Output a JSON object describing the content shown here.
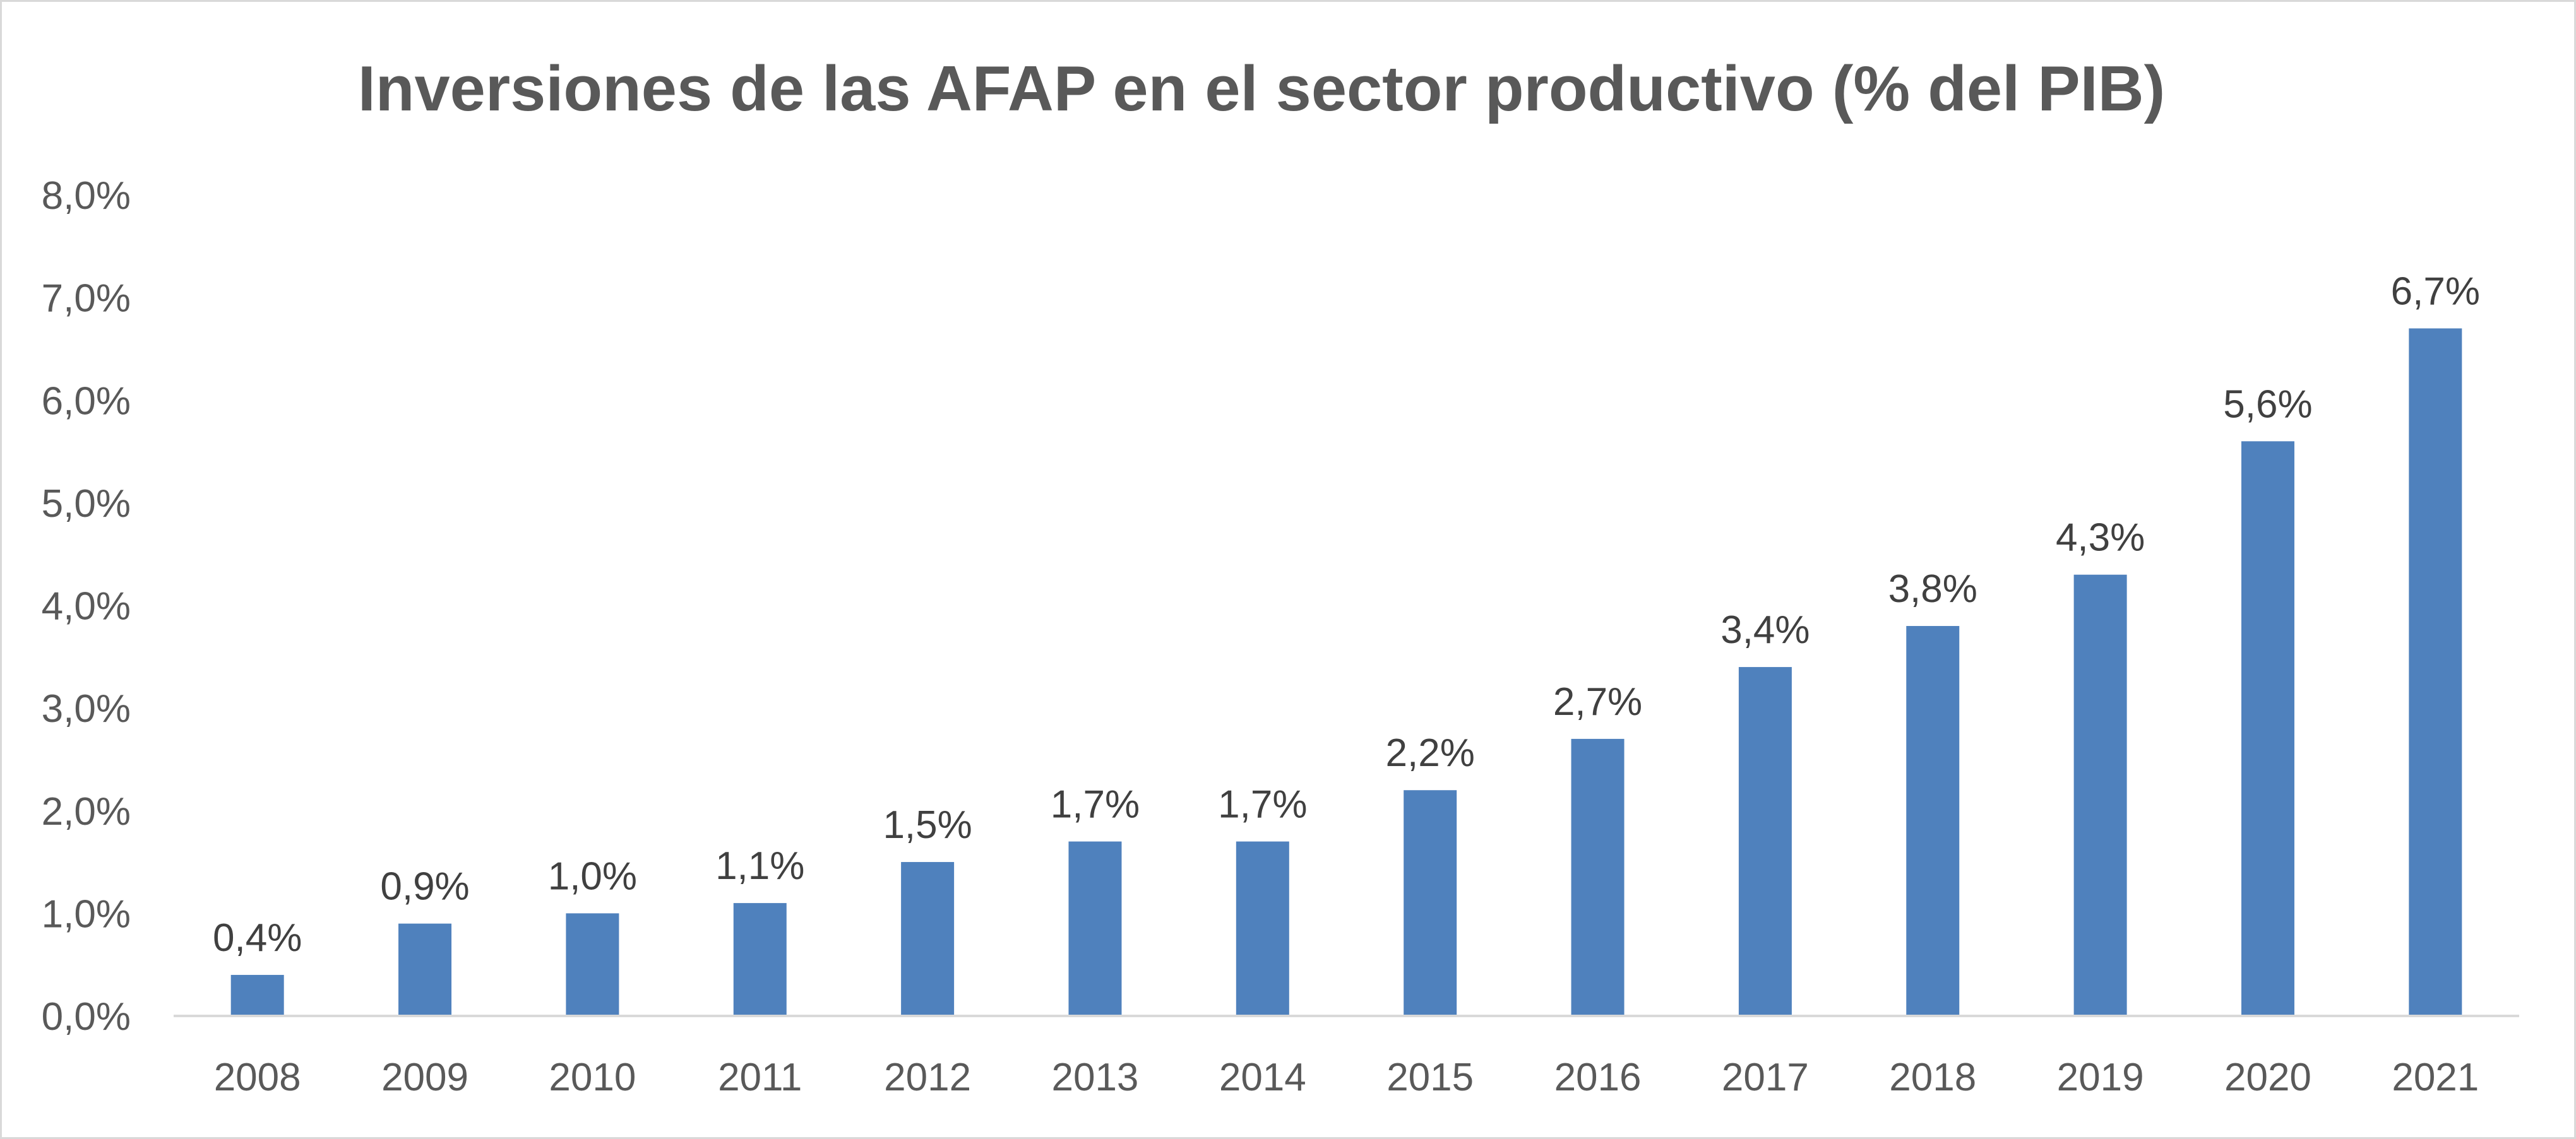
{
  "chart_data": {
    "type": "bar",
    "title": "Inversiones de las AFAP en el sector productivo (% del PIB)",
    "categories": [
      "2008",
      "2009",
      "2010",
      "2011",
      "2012",
      "2013",
      "2014",
      "2015",
      "2016",
      "2017",
      "2018",
      "2019",
      "2020",
      "2021"
    ],
    "values": [
      0.4,
      0.9,
      1.0,
      1.1,
      1.5,
      1.7,
      1.7,
      2.2,
      2.7,
      3.4,
      3.8,
      4.3,
      5.6,
      6.7
    ],
    "data_labels": [
      "0,4%",
      "0,9%",
      "1,0%",
      "1,1%",
      "1,5%",
      "1,7%",
      "1,7%",
      "2,2%",
      "2,7%",
      "3,4%",
      "3,8%",
      "4,3%",
      "5,6%",
      "6,7%"
    ],
    "y_ticks": [
      0,
      1,
      2,
      3,
      4,
      5,
      6,
      7,
      8
    ],
    "y_tick_labels": [
      "0,0%",
      "1,0%",
      "2,0%",
      "3,0%",
      "4,0%",
      "5,0%",
      "6,0%",
      "7,0%",
      "8,0%"
    ],
    "ylim": [
      0,
      8
    ],
    "unit": "%",
    "grid": false,
    "legend": "none",
    "bar_color": "#4f81bd",
    "axis_color": "#d9d9d9",
    "text_color": "#595959"
  }
}
